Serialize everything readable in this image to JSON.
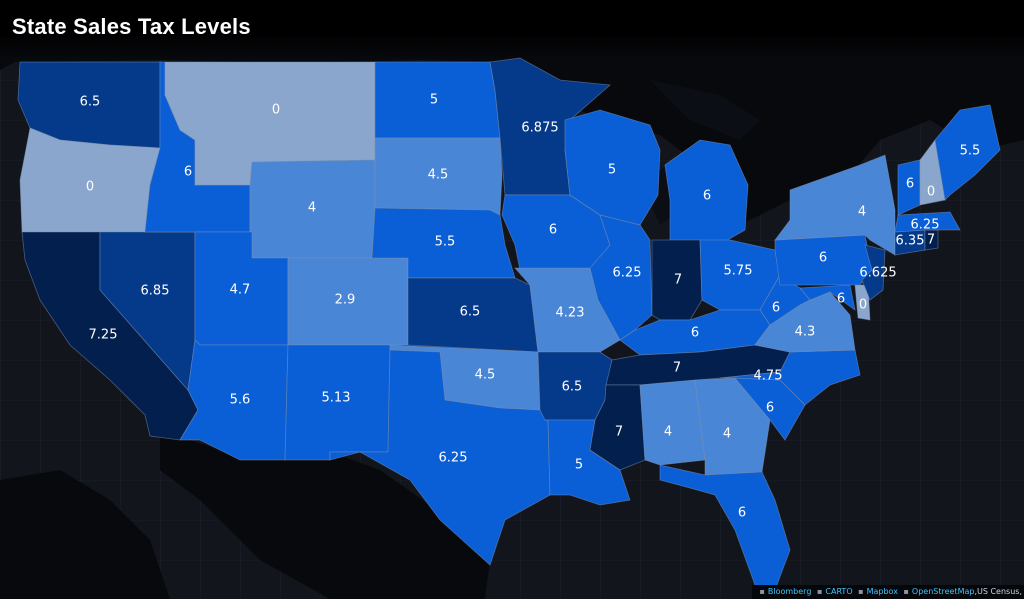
{
  "title": "State Sales Tax Levels",
  "colors": {
    "background": "#12151c",
    "land_dark": "#090b10",
    "grid": "#27303d",
    "rate_0": "#8aa6cc",
    "rate_low": "#4a86d6",
    "rate_mid": "#0a5ed6",
    "rate_high": "#05398a",
    "rate_max": "#031f4d"
  },
  "attribution": {
    "items": [
      "Bloomberg",
      "CARTO",
      "Mapbox",
      "OpenStreetMap"
    ],
    "tail": ",US Census,"
  },
  "states": [
    {
      "name": "Washington",
      "rate": "6.5"
    },
    {
      "name": "Oregon",
      "rate": "0"
    },
    {
      "name": "California",
      "rate": "7.25"
    },
    {
      "name": "Nevada",
      "rate": "6.85"
    },
    {
      "name": "Idaho",
      "rate": "6"
    },
    {
      "name": "Montana",
      "rate": "0"
    },
    {
      "name": "Wyoming",
      "rate": "4"
    },
    {
      "name": "Utah",
      "rate": "4.7"
    },
    {
      "name": "Arizona",
      "rate": "5.6"
    },
    {
      "name": "Colorado",
      "rate": "2.9"
    },
    {
      "name": "New Mexico",
      "rate": "5.13"
    },
    {
      "name": "North Dakota",
      "rate": "5"
    },
    {
      "name": "South Dakota",
      "rate": "4.5"
    },
    {
      "name": "Nebraska",
      "rate": "5.5"
    },
    {
      "name": "Kansas",
      "rate": "6.5"
    },
    {
      "name": "Oklahoma",
      "rate": "4.5"
    },
    {
      "name": "Texas",
      "rate": "6.25"
    },
    {
      "name": "Minnesota",
      "rate": "6.875"
    },
    {
      "name": "Iowa",
      "rate": "6"
    },
    {
      "name": "Missouri",
      "rate": "4.23"
    },
    {
      "name": "Arkansas",
      "rate": "6.5"
    },
    {
      "name": "Louisiana",
      "rate": "5"
    },
    {
      "name": "Wisconsin",
      "rate": "5"
    },
    {
      "name": "Illinois",
      "rate": "6.25"
    },
    {
      "name": "Michigan",
      "rate": "6"
    },
    {
      "name": "Indiana",
      "rate": "7"
    },
    {
      "name": "Ohio",
      "rate": "5.75"
    },
    {
      "name": "Kentucky",
      "rate": "6"
    },
    {
      "name": "Tennessee",
      "rate": "7"
    },
    {
      "name": "Mississippi",
      "rate": "7"
    },
    {
      "name": "Alabama",
      "rate": "4"
    },
    {
      "name": "Georgia",
      "rate": "4"
    },
    {
      "name": "Florida",
      "rate": "6"
    },
    {
      "name": "South Carolina",
      "rate": "6"
    },
    {
      "name": "North Carolina",
      "rate": "4.75"
    },
    {
      "name": "Virginia",
      "rate": "4.3"
    },
    {
      "name": "West Virginia",
      "rate": "6"
    },
    {
      "name": "Maryland",
      "rate": "6"
    },
    {
      "name": "Delaware",
      "rate": "0"
    },
    {
      "name": "Pennsylvania",
      "rate": "6"
    },
    {
      "name": "New Jersey",
      "rate": "6.625"
    },
    {
      "name": "New York",
      "rate": "4"
    },
    {
      "name": "Connecticut",
      "rate": "6.35"
    },
    {
      "name": "Rhode Island",
      "rate": "7"
    },
    {
      "name": "Massachusetts",
      "rate": "6.25"
    },
    {
      "name": "Vermont",
      "rate": "6"
    },
    {
      "name": "New Hampshire",
      "rate": "0"
    },
    {
      "name": "Maine",
      "rate": "5.5"
    }
  ]
}
